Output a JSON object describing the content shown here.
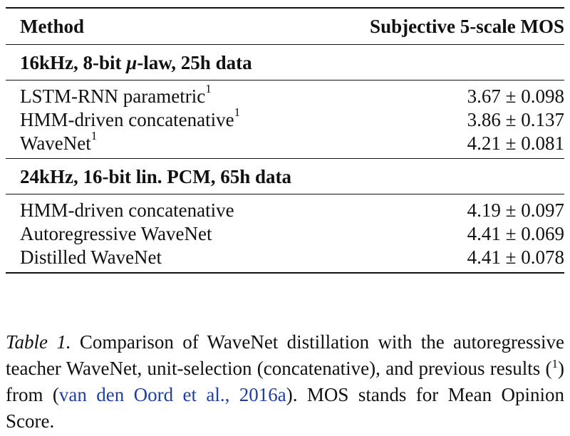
{
  "table": {
    "header": {
      "method": "Method",
      "score": "Subjective 5-scale MOS"
    },
    "sections": [
      {
        "title_pre": "16kHz, 8-bit ",
        "title_mu": "μ",
        "title_post": "-law, 25h data",
        "rows": [
          {
            "method": "LSTM-RNN parametric",
            "sup": "1",
            "score": "3.67 ± 0.098"
          },
          {
            "method": "HMM-driven concatenative",
            "sup": "1",
            "score": "3.86 ± 0.137"
          },
          {
            "method": "WaveNet",
            "sup": "1",
            "score": "4.21 ± 0.081"
          }
        ]
      },
      {
        "title": "24kHz, 16-bit lin. PCM, 65h data",
        "rows": [
          {
            "method": "HMM-driven concatenative",
            "sup": "",
            "score": "4.19 ± 0.097"
          },
          {
            "method": "Autoregressive WaveNet",
            "sup": "",
            "score": "4.41 ± 0.069"
          },
          {
            "method": "Distilled WaveNet",
            "sup": "",
            "score": "4.41 ± 0.078"
          }
        ]
      }
    ]
  },
  "caption": {
    "label": "Table 1.",
    "text_1": " Comparison of WaveNet distillation with the autoregressive teacher WaveNet, unit-selection (concatenative), and previous results (",
    "sup": "1",
    "text_2": ") from (",
    "cite": "van den Oord et al., 2016a",
    "text_3": ").  MOS stands for Mean Opinion Score.",
    "cite_color": "#1f3fa8"
  }
}
